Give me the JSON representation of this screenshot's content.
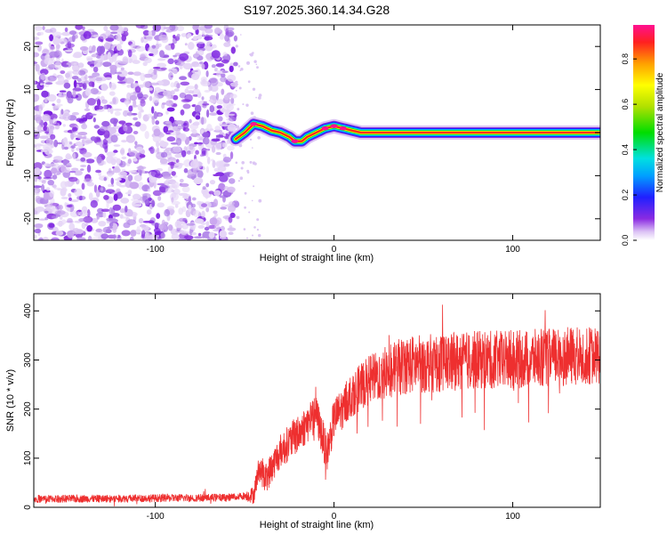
{
  "chart_data": [
    {
      "type": "heatmap",
      "title": "S197.2025.360.14.34.G28",
      "xlabel": "Height of straight line (km)",
      "ylabel": "Frequency (Hz)",
      "xlim": [
        -168,
        149
      ],
      "ylim": [
        -25,
        25
      ],
      "xticks": [
        -100,
        0,
        100
      ],
      "yticks": [
        -20,
        -10,
        0,
        10,
        20
      ],
      "noise_region": [
        -168,
        -55
      ],
      "signal_track": [
        [
          -55,
          -1.5
        ],
        [
          -50,
          0
        ],
        [
          -45,
          2
        ],
        [
          -40,
          1.5
        ],
        [
          -35,
          0.5
        ],
        [
          -30,
          0
        ],
        [
          -25,
          -1
        ],
        [
          -22,
          -2
        ],
        [
          -18,
          -2
        ],
        [
          -15,
          -1
        ],
        [
          -10,
          0
        ],
        [
          -5,
          1
        ],
        [
          0,
          1.5
        ],
        [
          5,
          1
        ],
        [
          10,
          0.5
        ],
        [
          15,
          0
        ],
        [
          30,
          0
        ],
        [
          60,
          0
        ],
        [
          85,
          0
        ],
        [
          100,
          0
        ],
        [
          120,
          0
        ],
        [
          149,
          0
        ]
      ],
      "colorbar": {
        "label": "Normalized spectral amplitude",
        "range": [
          0,
          0.95
        ],
        "ticks": [
          0.0,
          0.2,
          0.4,
          0.6,
          0.8
        ]
      }
    },
    {
      "type": "line",
      "xlabel": "Height of straight line (km)",
      "ylabel": "SNR (10 * v/v)",
      "xlim": [
        -168,
        149
      ],
      "ylim": [
        0,
        435
      ],
      "xticks": [
        -100,
        0,
        100
      ],
      "yticks": [
        0,
        100,
        200,
        300,
        400
      ],
      "color": "#ee2f2f",
      "trend": [
        [
          -168,
          17
        ],
        [
          -120,
          18
        ],
        [
          -60,
          20
        ],
        [
          -45,
          25
        ],
        [
          -42,
          80
        ],
        [
          -38,
          60
        ],
        [
          -30,
          115
        ],
        [
          -20,
          150
        ],
        [
          -10,
          190
        ],
        [
          -4,
          110
        ],
        [
          0,
          180
        ],
        [
          10,
          230
        ],
        [
          20,
          260
        ],
        [
          40,
          290
        ],
        [
          60,
          295
        ],
        [
          80,
          300
        ],
        [
          100,
          300
        ],
        [
          120,
          305
        ],
        [
          149,
          310
        ]
      ],
      "noise_amplitude": [
        [
          -168,
          8
        ],
        [
          -50,
          8
        ],
        [
          -40,
          30
        ],
        [
          -20,
          40
        ],
        [
          0,
          40
        ],
        [
          40,
          60
        ],
        [
          149,
          60
        ]
      ]
    }
  ]
}
